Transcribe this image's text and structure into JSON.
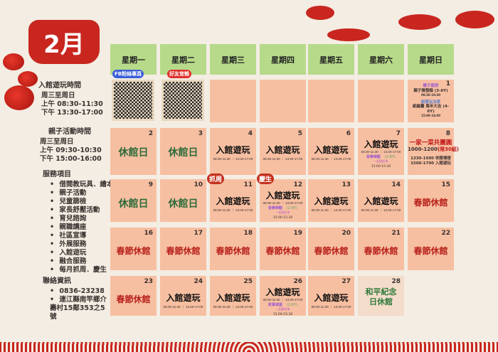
{
  "title": "2月",
  "sidebar": {
    "visit_title": "入館遊玩時間",
    "visit_lines": [
      "周三至周日",
      "上午 08:30-11:30",
      "下午 13:30-17:00"
    ],
    "activity_title": "親子活動時間",
    "activity_lines": [
      "周三至周日",
      "上午 09:30-10:30",
      "下午 15:00-16:00"
    ],
    "services_title": "服務項目",
    "services": [
      "借閱教玩具．繪本",
      "親子活動",
      "兒童篩檢",
      "家長舒壓活動",
      "育兒諮詢",
      "親職講座",
      "社區宣導",
      "外展服務",
      "入館遊玩",
      "融合服務",
      "每月抓周．慶生"
    ],
    "contact_title": "聯絡資訊",
    "contact": [
      "0836-23238",
      "連江縣南竿鄉介壽村15鄰353之5號"
    ]
  },
  "weekdays": [
    "星期一",
    "星期二",
    "星期三",
    "星期四",
    "星期五",
    "星期六",
    "星期日"
  ],
  "qr": {
    "fb_label": "FB粉絲專頁",
    "line_label": "好友官賴"
  },
  "day1": {
    "num": "1",
    "act1_title": "親子廚房",
    "act1": "親子微發糕 (3-6Y)",
    "act1_time": "09:30-10:30",
    "act2_title": "創意玩法家",
    "act2": "紙編畫 馬年大吉 (4-6Y)",
    "act2_time": "15:00-16:00"
  },
  "day8": {
    "num": "8",
    "title": "一家一菜共團圓",
    "time": "1000-1200",
    "limit": "(限30組)",
    "line1": "1330-1500 休館場復",
    "line2": "1500-1700 入館遊玩"
  },
  "play_label": "入館遊玩",
  "play_time": "08:30-11:30 ｜ 13:30-17:00",
  "closed_label": "休館日",
  "festival_label": "春節休館",
  "acts": {
    "d7": {
      "title": "音樂律動",
      "age": "(2-6Y)",
      "sub": "一起跳起來",
      "time": "15:00-15:30"
    },
    "d12": {
      "title": "音樂律動",
      "age": "(2-6Y)",
      "sub": "一起跳起來",
      "time": "15:00-15:30"
    },
    "d26": {
      "title": "故事城堡",
      "age": "(2-6Y)",
      "sub": "一起聽故事",
      "time": "15:00-15:30"
    }
  },
  "badges": {
    "d11": "抓周",
    "d12": "慶生"
  },
  "day28": {
    "num": "28",
    "label": "和平紀念日休館"
  },
  "colors": {
    "cell": "#f7bfa1",
    "header": "#b7da8a",
    "accent": "#c8261f",
    "closed": "#2d6b3a"
  }
}
